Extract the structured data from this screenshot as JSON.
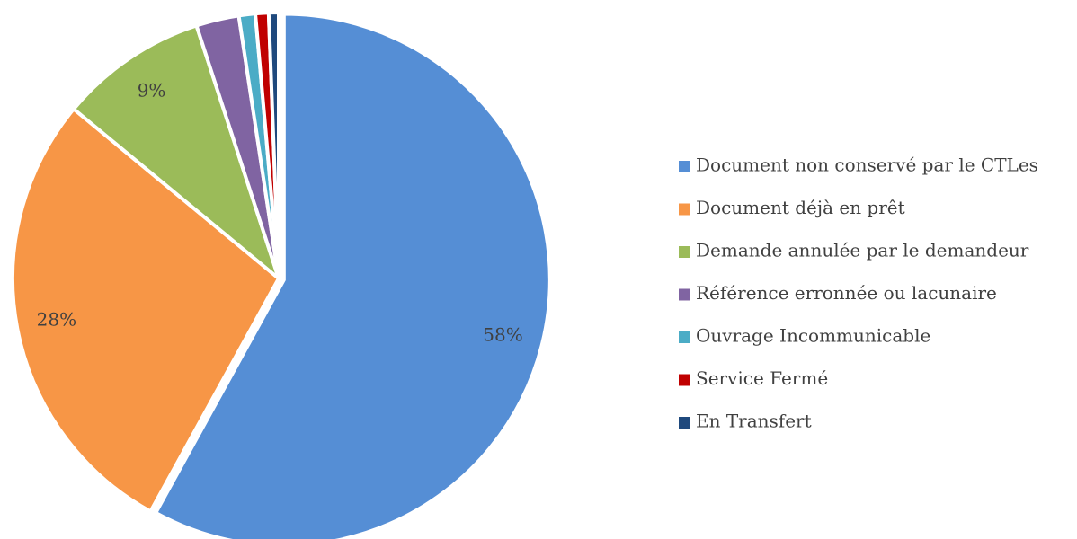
{
  "chart_data": {
    "type": "pie",
    "categories": [
      "Document non conservé par le CTLes",
      "Document déjà en prêt",
      "Demande annulée par le demandeur",
      "Référence erronnée ou lacunaire",
      "Ouvrage Incommunicable",
      "Service Fermé",
      "En Transfert"
    ],
    "values": [
      58,
      28,
      9,
      2.6,
      1,
      0.8,
      0.6
    ],
    "value_labels": [
      "58%",
      "28%",
      "9%",
      null,
      null,
      null,
      null
    ],
    "colors": [
      "#558ed5",
      "#f79646",
      "#9bbb59",
      "#8064a2",
      "#4bacc6",
      "#c00000",
      "#1f497d"
    ],
    "legend": "right"
  }
}
